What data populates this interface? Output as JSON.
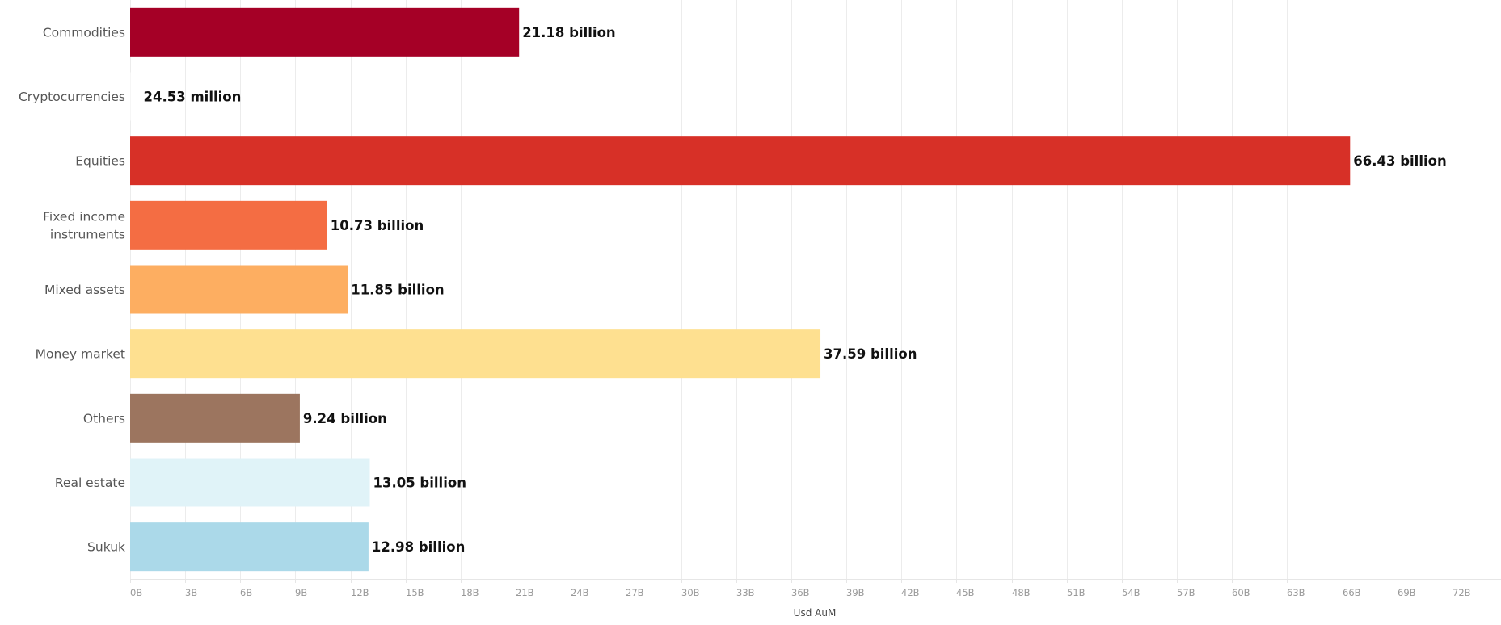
{
  "chart_data": {
    "type": "bar",
    "orientation": "horizontal",
    "categories": [
      "Commodities",
      "Cryptocurrencies",
      "Equities",
      "Fixed income instruments",
      "Mixed assets",
      "Money market",
      "Others",
      "Real estate",
      "Sukuk"
    ],
    "category_lines": [
      [
        "Commodities"
      ],
      [
        "Cryptocurrencies"
      ],
      [
        "Equities"
      ],
      [
        "Fixed income",
        "instruments"
      ],
      [
        "Mixed assets"
      ],
      [
        "Money market"
      ],
      [
        "Others"
      ],
      [
        "Real estate"
      ],
      [
        "Sukuk"
      ]
    ],
    "values": [
      21.18,
      0.02453,
      66.43,
      10.73,
      11.85,
      37.59,
      9.24,
      13.05,
      12.98
    ],
    "value_labels": [
      "21.18 billion",
      "24.53 million",
      "66.43 billion",
      "10.73 billion",
      "11.85 billion",
      "37.59 billion",
      "9.24 billion",
      "13.05 billion",
      "12.98 billion"
    ],
    "colors": [
      "#a50026",
      "#ffffff",
      "#d73027",
      "#f46d43",
      "#fdae61",
      "#fee090",
      "#9c755f",
      "#e0f3f8",
      "#abd9e9"
    ],
    "xlabel": "Usd AuM",
    "ylabel": "",
    "xlim": [
      0,
      75
    ],
    "x_ticks": [
      0,
      3,
      6,
      9,
      12,
      15,
      18,
      21,
      24,
      27,
      30,
      33,
      36,
      39,
      42,
      45,
      48,
      51,
      54,
      57,
      60,
      63,
      66,
      69,
      72
    ],
    "x_tick_labels": [
      "0B",
      "3B",
      "6B",
      "9B",
      "12B",
      "15B",
      "18B",
      "21B",
      "24B",
      "27B",
      "30B",
      "33B",
      "36B",
      "39B",
      "42B",
      "45B",
      "48B",
      "51B",
      "54B",
      "57B",
      "60B",
      "63B",
      "66B",
      "69B",
      "72B"
    ],
    "grid": true,
    "legend": "none"
  }
}
